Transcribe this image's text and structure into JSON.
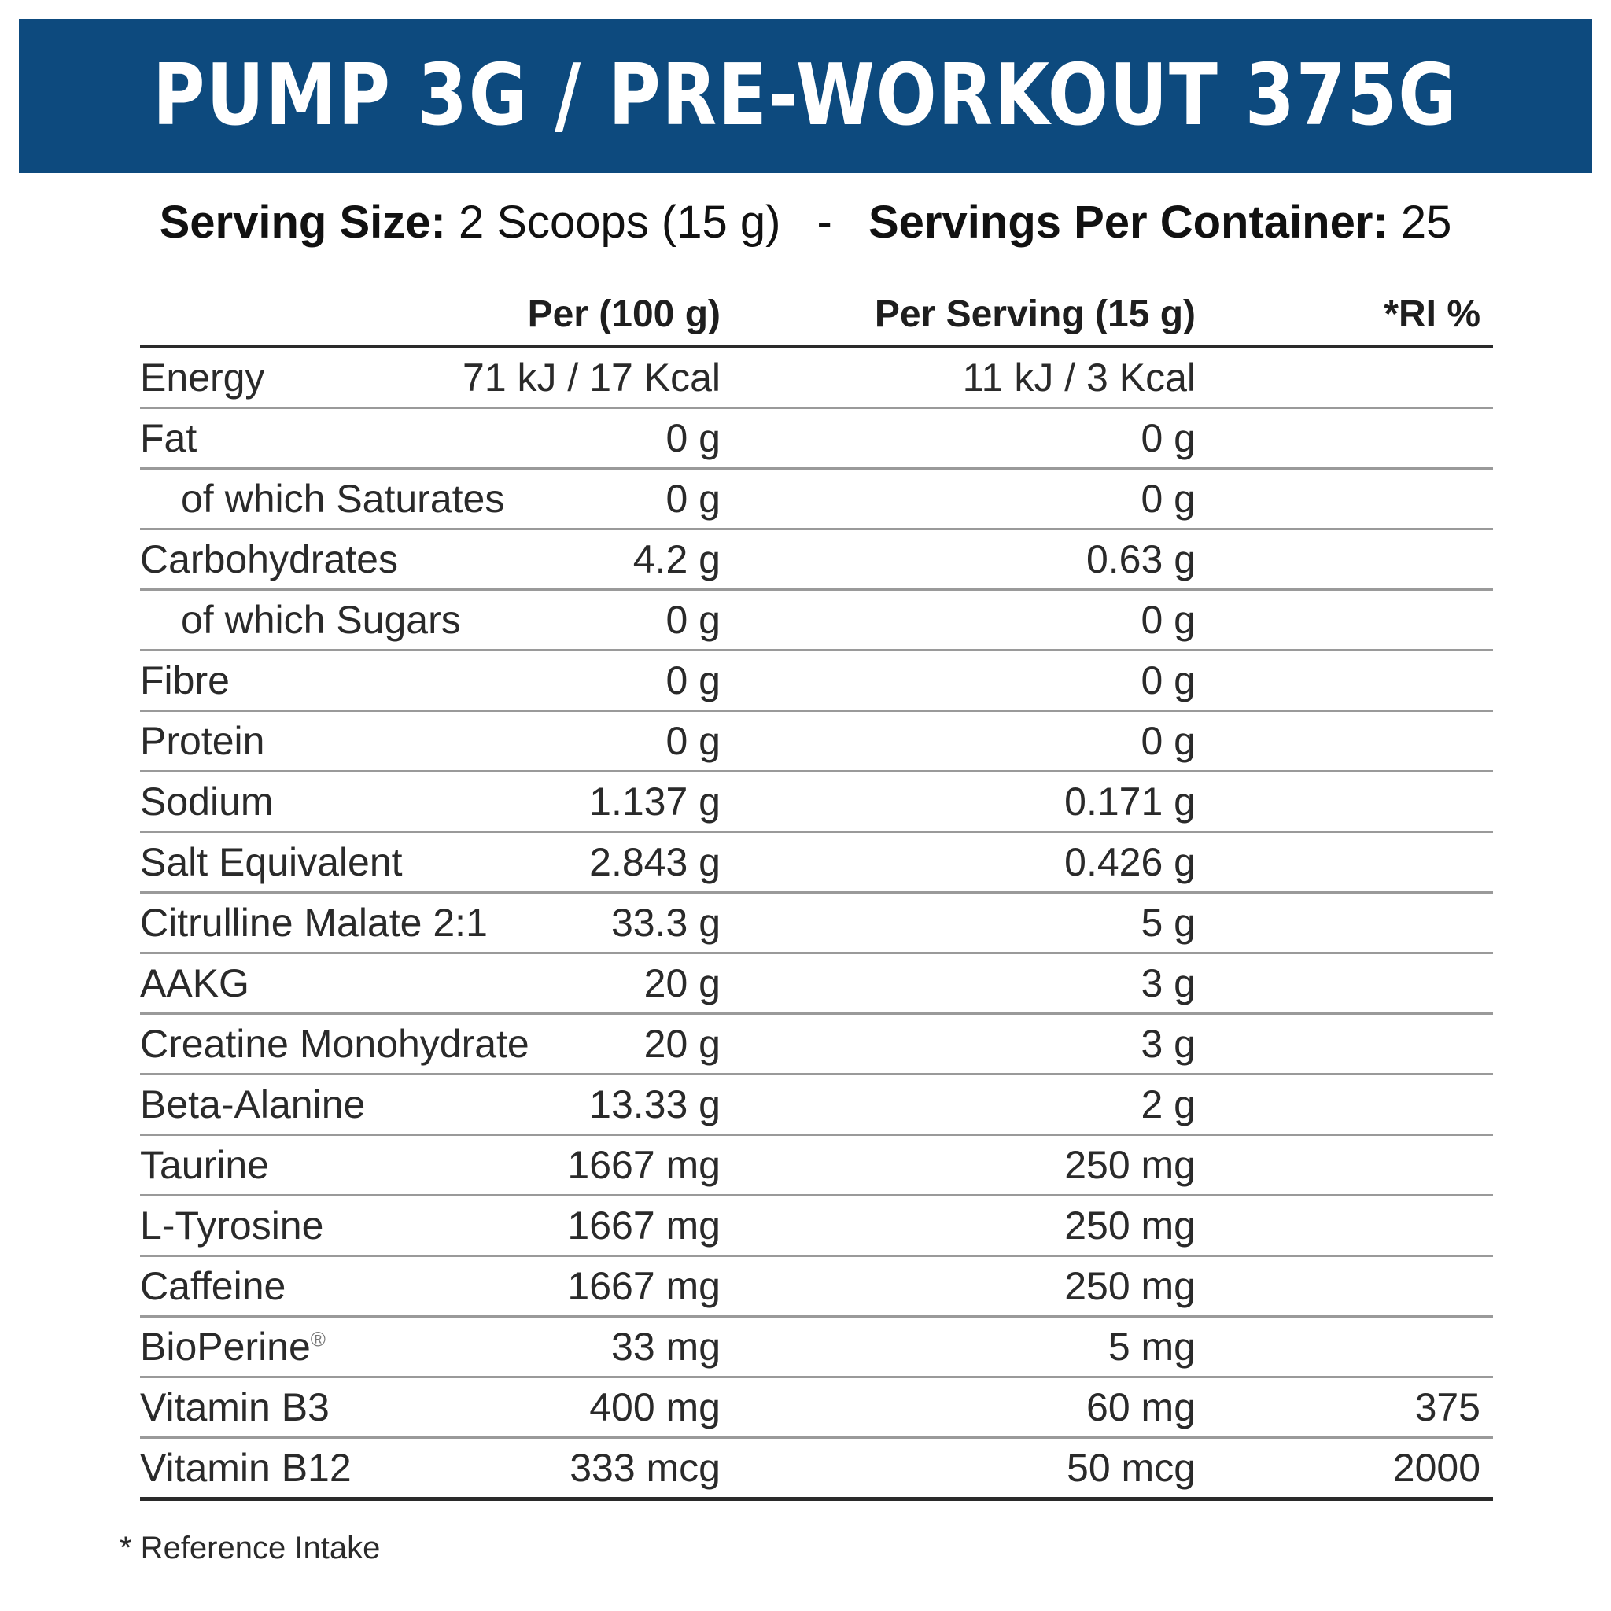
{
  "header": {
    "title": "PUMP 3G / PRE-WORKOUT 375G"
  },
  "serving": {
    "size_label": "Serving Size:",
    "size_value": "2 Scoops (15 g)",
    "separator": "-",
    "per_container_label": "Servings Per Container:",
    "per_container_value": "25"
  },
  "table": {
    "columns": {
      "per_100": "Per (100 g)",
      "per_serving": "Per Serving (15 g)",
      "ri": "*RI %"
    },
    "rows": [
      {
        "label": "Energy",
        "per_100": "71 kJ / 17 Kcal",
        "per_serving": "11 kJ / 3 Kcal",
        "ri": ""
      },
      {
        "label": "Fat",
        "per_100": "0 g",
        "per_serving": "0 g",
        "ri": ""
      },
      {
        "label": "of which Saturates",
        "per_100": "0 g",
        "per_serving": "0 g",
        "ri": ""
      },
      {
        "label": "Carbohydrates",
        "per_100": "4.2 g",
        "per_serving": "0.63 g",
        "ri": ""
      },
      {
        "label": "of which Sugars",
        "per_100": "0 g",
        "per_serving": "0 g",
        "ri": ""
      },
      {
        "label": "Fibre",
        "per_100": "0 g",
        "per_serving": "0 g",
        "ri": ""
      },
      {
        "label": "Protein",
        "per_100": "0 g",
        "per_serving": "0 g",
        "ri": ""
      },
      {
        "label": "Sodium",
        "per_100": "1.137 g",
        "per_serving": "0.171 g",
        "ri": ""
      },
      {
        "label": "Salt Equivalent",
        "per_100": "2.843 g",
        "per_serving": "0.426 g",
        "ri": ""
      },
      {
        "label": "Citrulline Malate 2:1",
        "per_100": "33.3 g",
        "per_serving": "5 g",
        "ri": ""
      },
      {
        "label": "AAKG",
        "per_100": "20 g",
        "per_serving": "3 g",
        "ri": ""
      },
      {
        "label": "Creatine Monohydrate",
        "per_100": "20 g",
        "per_serving": "3 g",
        "ri": ""
      },
      {
        "label": "Beta-Alanine",
        "per_100": "13.33 g",
        "per_serving": "2 g",
        "ri": ""
      },
      {
        "label": "Taurine",
        "per_100": "1667 mg",
        "per_serving": "250 mg",
        "ri": ""
      },
      {
        "label": "L-Tyrosine",
        "per_100": "1667 mg",
        "per_serving": "250 mg",
        "ri": ""
      },
      {
        "label": "Caffeine",
        "per_100": "1667 mg",
        "per_serving": "250 mg",
        "ri": ""
      },
      {
        "label": "BioPerine",
        "registered_mark": "®",
        "per_100": "33 mg",
        "per_serving": "5 mg",
        "ri": ""
      },
      {
        "label": "Vitamin B3",
        "per_100": "400 mg",
        "per_serving": "60 mg",
        "ri": "375"
      },
      {
        "label": "Vitamin B12",
        "per_100": "333 mcg",
        "per_serving": "50 mcg",
        "ri": "2000"
      }
    ]
  },
  "footnote": "* Reference Intake"
}
